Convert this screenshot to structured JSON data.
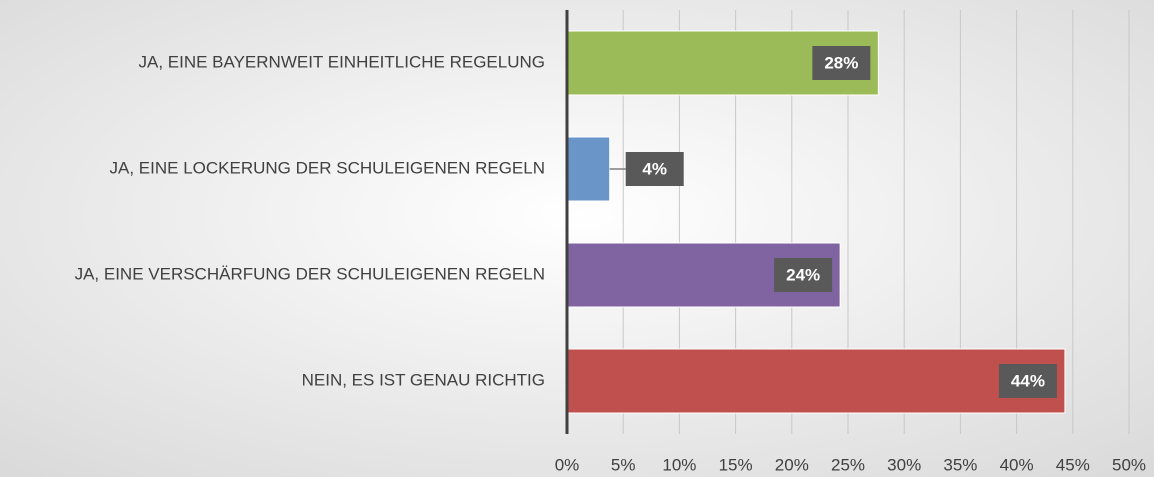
{
  "chart_data": {
    "type": "bar",
    "orientation": "horizontal",
    "categories": [
      "JA, EINE BAYERNWEIT EINHEITLICHE REGELUNG",
      "JA, EINE LOCKERUNG DER SCHULEIGENEN REGELN",
      "JA, EINE VERSCHÄRFUNG DER SCHULEIGENEN REGELN",
      "NEIN, ES IST GENAU RICHTIG"
    ],
    "values": [
      27.7,
      3.8,
      24.3,
      44.3
    ],
    "value_labels": [
      "28%",
      "4%",
      "24%",
      "44%"
    ],
    "colors": [
      "#9bbb59",
      "#6a95c9",
      "#8064a2",
      "#c0504d"
    ],
    "xlim": [
      0,
      50
    ],
    "xticks": [
      {
        "value": 0,
        "label": "0%"
      },
      {
        "value": 5,
        "label": "5%"
      },
      {
        "value": 10,
        "label": "10%"
      },
      {
        "value": 15,
        "label": "15%"
      },
      {
        "value": 20,
        "label": "20%"
      },
      {
        "value": 25,
        "label": "25%"
      },
      {
        "value": 30,
        "label": "30%"
      },
      {
        "value": 35,
        "label": "35%"
      },
      {
        "value": 40,
        "label": "40%"
      },
      {
        "value": 45,
        "label": "45%"
      },
      {
        "value": 50,
        "label": "50%"
      }
    ],
    "grid": true
  }
}
